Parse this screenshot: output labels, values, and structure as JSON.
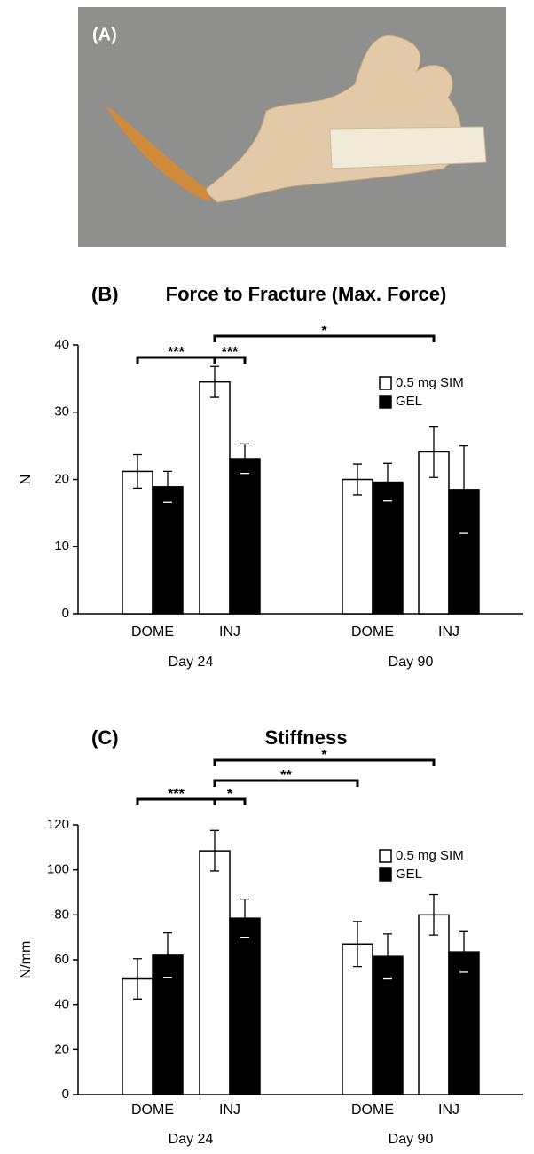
{
  "panel_label": "(A)",
  "chart_data": [
    {
      "type": "bar",
      "panel_label": "(B)",
      "title": "Force to Fracture (Max. Force)",
      "y_label": "N",
      "categories": [
        "DOME",
        "INJ",
        "DOME",
        "INJ"
      ],
      "groups": [
        "Day 24",
        "Day 90"
      ],
      "series": [
        {
          "name": "0.5 mg SIM",
          "color": "#ffffff",
          "values": [
            21.2,
            34.5,
            20.0,
            24.1
          ],
          "errors": [
            2.5,
            2.3,
            2.3,
            3.8
          ]
        },
        {
          "name": "GEL",
          "color": "#000000",
          "values": [
            18.9,
            23.1,
            19.6,
            18.5
          ],
          "errors": [
            2.3,
            2.2,
            2.8,
            6.5
          ]
        }
      ],
      "ylim": [
        0,
        40
      ],
      "yticks": [
        0,
        10,
        20,
        30,
        40
      ],
      "legend": "upper right",
      "annotations": [
        "***",
        "***",
        "*"
      ]
    },
    {
      "type": "bar",
      "panel_label": "(C)",
      "title": "Stiffness",
      "y_label": "N/mm",
      "categories": [
        "DOME",
        "INJ",
        "DOME",
        "INJ"
      ],
      "groups": [
        "Day 24",
        "Day 90"
      ],
      "series": [
        {
          "name": "0.5 mg SIM",
          "color": "#ffffff",
          "values": [
            51.5,
            108.5,
            67,
            80
          ],
          "errors": [
            9,
            9,
            10,
            9
          ]
        },
        {
          "name": "GEL",
          "color": "#000000",
          "values": [
            62,
            78.5,
            61.5,
            63.5
          ],
          "errors": [
            10,
            8.5,
            10,
            9
          ]
        }
      ],
      "ylim": [
        0,
        120
      ],
      "yticks": [
        0,
        20,
        40,
        60,
        80,
        100,
        120
      ],
      "legend": "upper right",
      "annotations": [
        "***",
        "*",
        "**",
        "*"
      ]
    }
  ]
}
